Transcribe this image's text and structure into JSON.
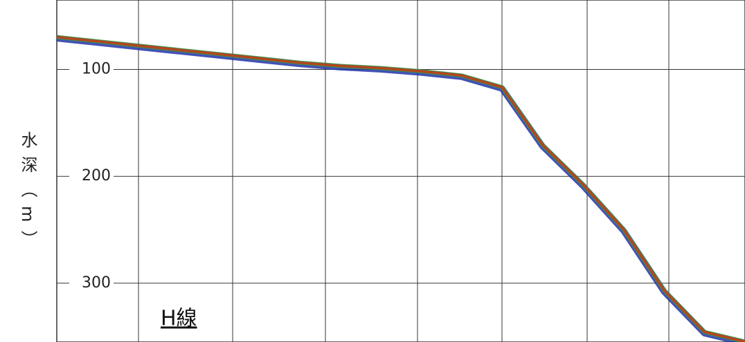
{
  "chart_data": {
    "type": "line",
    "y_label": "水深（m）",
    "annotation": "H線",
    "categories": [
      null,
      null,
      null,
      null,
      null,
      null,
      null,
      null,
      null,
      null,
      null,
      null,
      null,
      null,
      null,
      null,
      null,
      null
    ],
    "series": [
      {
        "name": null,
        "color": "#b5461f",
        "values": [
          69,
          73,
          77,
          81,
          85,
          89,
          93,
          96,
          98,
          101,
          105,
          116,
          170,
          207,
          249,
          306,
          345,
          354
        ]
      }
    ],
    "ylim": [
      35,
      355
    ],
    "yticks": [
      100,
      200,
      300
    ],
    "grid": true,
    "y_inverted": true
  }
}
